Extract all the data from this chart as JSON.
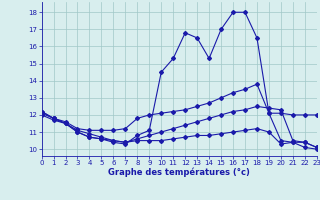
{
  "hours": [
    0,
    1,
    2,
    3,
    4,
    5,
    6,
    7,
    8,
    9,
    10,
    11,
    12,
    13,
    14,
    15,
    16,
    17,
    18,
    19,
    20,
    21,
    22,
    23
  ],
  "temp_line1": [
    12.2,
    11.8,
    11.5,
    11.0,
    10.7,
    10.6,
    10.4,
    10.3,
    10.8,
    11.1,
    14.5,
    15.3,
    16.8,
    16.5,
    15.3,
    17.0,
    18.0,
    18.0,
    16.5,
    12.1,
    10.5,
    10.4,
    10.1,
    10.0
  ],
  "temp_line2": [
    12.2,
    11.8,
    11.6,
    11.2,
    11.1,
    11.1,
    11.1,
    11.2,
    11.8,
    12.0,
    12.1,
    12.2,
    12.3,
    12.5,
    12.7,
    13.0,
    13.3,
    13.5,
    13.8,
    12.1,
    12.1,
    12.0,
    12.0,
    12.0
  ],
  "temp_line3": [
    12.0,
    11.7,
    11.5,
    11.0,
    10.7,
    10.6,
    10.5,
    10.4,
    10.5,
    10.5,
    10.5,
    10.6,
    10.7,
    10.8,
    10.8,
    10.9,
    11.0,
    11.1,
    11.2,
    11.0,
    10.3,
    10.4,
    10.4,
    10.1
  ],
  "temp_line4": [
    12.1,
    11.8,
    11.5,
    11.1,
    10.9,
    10.7,
    10.5,
    10.4,
    10.6,
    10.8,
    11.0,
    11.2,
    11.4,
    11.6,
    11.8,
    12.0,
    12.2,
    12.3,
    12.5,
    12.4,
    12.3,
    10.5,
    10.4,
    10.1
  ],
  "bg_color": "#d8eeee",
  "grid_color": "#a0c8c8",
  "line_color": "#1a1aaa",
  "xlabel": "Graphe des températures (°c)",
  "ylim": [
    9.6,
    18.6
  ],
  "xlim": [
    0,
    23
  ],
  "yticks": [
    10,
    11,
    12,
    13,
    14,
    15,
    16,
    17,
    18
  ],
  "xticks": [
    0,
    1,
    2,
    3,
    4,
    5,
    6,
    7,
    8,
    9,
    10,
    11,
    12,
    13,
    14,
    15,
    16,
    17,
    18,
    19,
    20,
    21,
    22,
    23
  ]
}
